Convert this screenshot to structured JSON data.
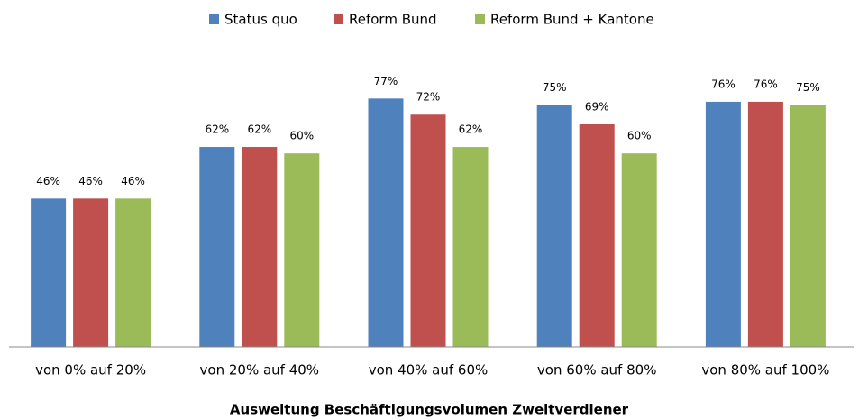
{
  "chart_data": {
    "type": "bar",
    "x_label": "Ausweitung Beschäftigungsvolumen Zweitverdiener",
    "categories": [
      "von 0% auf 20%",
      "von 20% auf 40%",
      "von 40% auf 60%",
      "von 60% auf 80%",
      "von 80% auf 100%"
    ],
    "series": [
      {
        "name": "Status quo",
        "color": "#4f81bd",
        "values": [
          46,
          62,
          77,
          75,
          76
        ],
        "value_labels": [
          "46%",
          "62%",
          "77%",
          "75%",
          "76%"
        ]
      },
      {
        "name": "Reform Bund",
        "color": "#c0504d",
        "values": [
          46,
          62,
          72,
          69,
          76
        ],
        "value_labels": [
          "46%",
          "62%",
          "72%",
          "69%",
          "76%"
        ]
      },
      {
        "name": "Reform Bund + Kantone",
        "color": "#9bbb59",
        "values": [
          46,
          60,
          62,
          60,
          75
        ],
        "value_labels": [
          "46%",
          "60%",
          "62%",
          "60%",
          "75%"
        ]
      }
    ],
    "legend": "top"
  }
}
